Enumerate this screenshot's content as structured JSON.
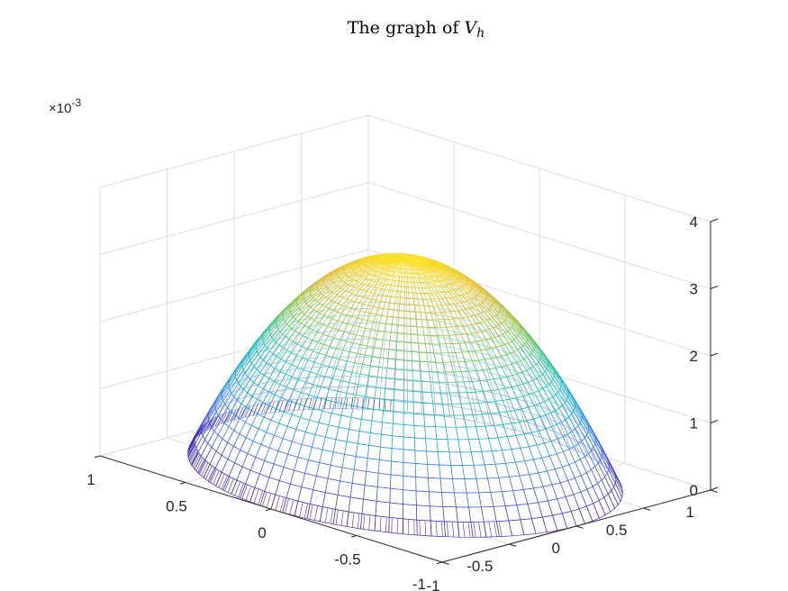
{
  "chart_data": {
    "type": "surface",
    "title_prefix": "The graph of ",
    "title_var": "V",
    "title_sub": "h",
    "x": {
      "lim": [
        -1,
        1
      ],
      "ticks": [
        -1,
        -0.5,
        0,
        0.5,
        1
      ],
      "tick_labels": [
        "-1",
        "-0.5",
        "0",
        "0.5",
        "1"
      ]
    },
    "y": {
      "lim": [
        -1,
        1
      ],
      "ticks": [
        -1,
        -0.5,
        0,
        0.5,
        1
      ],
      "tick_labels": [
        "-1",
        "-0.5",
        "0",
        "0.5",
        "1"
      ]
    },
    "z": {
      "lim": [
        0,
        0.004
      ],
      "ticks": [
        0,
        0.001,
        0.002,
        0.003,
        0.004
      ],
      "tick_labels": [
        "0",
        "1",
        "2",
        "3",
        "4"
      ],
      "exponent_prefix": "×10",
      "exponent": "-3"
    },
    "surface": {
      "domain": "unit disk",
      "peak": 0.0032,
      "shape": "paraboloid",
      "formula": "V = 0.0032 * (1 - x^2 - y^2)"
    },
    "grid": true,
    "colormap": [
      "#3e26a8",
      "#4455ec",
      "#2f8af4",
      "#12b1d4",
      "#2bc09a",
      "#85c54e",
      "#e0b93b",
      "#f9e22d"
    ]
  }
}
